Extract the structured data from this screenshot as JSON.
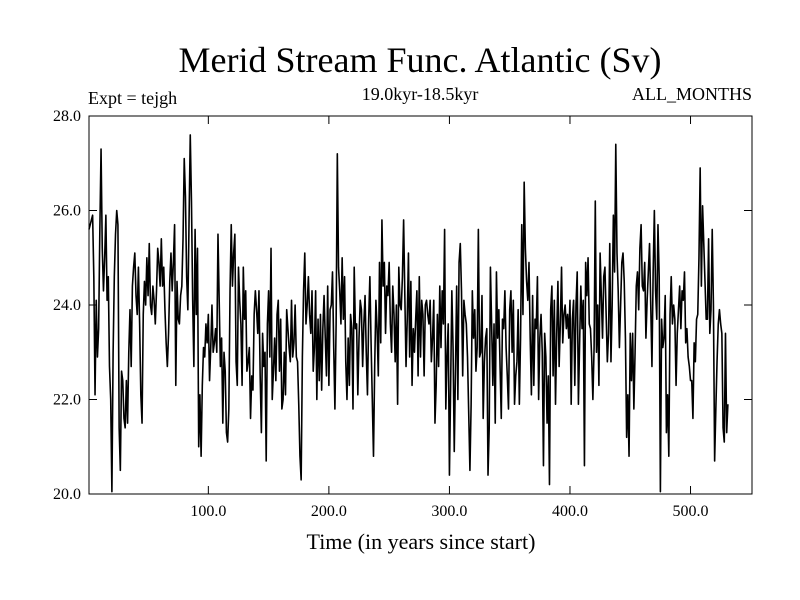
{
  "header": {
    "title": "Merid Stream Func. Atlantic (Sv)",
    "subtitle": "19.0kyr-18.5kyr",
    "left_label": "Expt = tejgh",
    "right_label": "ALL_MONTHS"
  },
  "colors": {
    "line": "#000000",
    "axes": "#000000",
    "background": "#ffffff"
  },
  "chart_data": {
    "type": "line",
    "title": "Merid Stream Func. Atlantic (Sv)",
    "subtitle": "19.0kyr-18.5kyr",
    "xlabel": "Time (in years since start)",
    "ylabel": "",
    "xlim": [
      1,
      551
    ],
    "ylim": [
      20,
      28
    ],
    "grid": false,
    "legend": "none",
    "xticks": [
      100,
      200,
      300,
      400,
      500
    ],
    "xtick_labels": [
      "100.0",
      "200.0",
      "300.0",
      "400.0",
      "500.0"
    ],
    "yticks": [
      20,
      22,
      24,
      26,
      28
    ],
    "ytick_labels": [
      "20.0",
      "22.0",
      "24.0",
      "26.0",
      "28.0"
    ],
    "series": [
      {
        "x_start": 1,
        "x_step": 1,
        "values": [
          25.6,
          25.7,
          25.8,
          25.9,
          24.6,
          22.1,
          24.1,
          22.9,
          23.5,
          25.6,
          27.3,
          25.2,
          24.3,
          25.0,
          25.9,
          24.1,
          24.6,
          22.7,
          22.0,
          20.05,
          23.0,
          24.6,
          25.5,
          26.0,
          25.7,
          21.4,
          20.5,
          22.6,
          22.4,
          21.6,
          21.4,
          22.4,
          21.5,
          23.0,
          23.9,
          22.7,
          24.4,
          24.8,
          25.1,
          24.2,
          23.8,
          24.8,
          23.6,
          22.1,
          21.5,
          23.8,
          24.5,
          24.0,
          25.0,
          24.2,
          25.3,
          24.0,
          23.8,
          24.4,
          24.1,
          23.6,
          24.3,
          25.2,
          24.9,
          24.4,
          25.4,
          24.4,
          24.8,
          23.9,
          23.2,
          22.7,
          23.4,
          24.5,
          25.1,
          24.3,
          24.9,
          25.7,
          22.3,
          24.5,
          23.7,
          23.6,
          24.2,
          24.4,
          25.4,
          27.1,
          26.3,
          24.6,
          23.9,
          25.8,
          27.6,
          26.2,
          24.1,
          22.7,
          25.6,
          23.8,
          25.2,
          21.0,
          22.1,
          20.8,
          22.3,
          23.1,
          22.9,
          23.6,
          23.2,
          23.8,
          22.4,
          23.1,
          24.0,
          23.0,
          23.2,
          23.5,
          23.0,
          25.5,
          24.1,
          22.7,
          23.3,
          21.5,
          23.0,
          22.6,
          21.3,
          21.1,
          21.8,
          24.3,
          25.7,
          24.4,
          25.1,
          25.5,
          22.8,
          22.3,
          24.8,
          24.1,
          23.6,
          22.3,
          24.8,
          23.7,
          24.3,
          22.6,
          22.8,
          23.1,
          21.6,
          22.5,
          22.2,
          23.8,
          24.3,
          23.9,
          23.4,
          24.3,
          22.5,
          21.3,
          23.4,
          22.7,
          23.0,
          20.7,
          23.6,
          24.3,
          22.9,
          25.2,
          22.0,
          22.6,
          23.3,
          22.4,
          23.8,
          24.1,
          22.6,
          23.7,
          21.8,
          22.0,
          23.0,
          22.1,
          23.9,
          23.5,
          23.1,
          22.8,
          24.1,
          22.9,
          23.2,
          24.0,
          22.9,
          22.8,
          21.9,
          20.8,
          20.3,
          22.9,
          24.3,
          25.1,
          23.6,
          24.0,
          24.6,
          23.8,
          23.4,
          24.3,
          22.6,
          23.1,
          24.3,
          22.0,
          23.7,
          22.4,
          23.8,
          22.2,
          23.5,
          24.2,
          23.3,
          22.5,
          24.4,
          22.3,
          23.9,
          24.0,
          24.7,
          23.1,
          21.8,
          23.6,
          27.2,
          24.8,
          24.3,
          23.6,
          25.0,
          23.7,
          24.6,
          22.8,
          22.0,
          23.3,
          22.3,
          23.8,
          23.5,
          21.8,
          24.8,
          23.5,
          23.6,
          22.1,
          23.3,
          24.1,
          23.9,
          22.7,
          23.6,
          24.2,
          23.0,
          22.1,
          23.7,
          24.6,
          23.2,
          22.0,
          20.8,
          22.7,
          24.1,
          23.5,
          22.5,
          24.9,
          23.2,
          25.8,
          24.4,
          24.9,
          23.4,
          24.4,
          24.2,
          24.9,
          23.6,
          23.0,
          24.4,
          23.8,
          22.8,
          24.0,
          21.9,
          24.8,
          24.0,
          23.9,
          24.6,
          25.8,
          24.2,
          22.7,
          23.7,
          25.1,
          22.9,
          24.5,
          22.3,
          23.5,
          23.0,
          23.7,
          24.3,
          22.5,
          24.6,
          22.9,
          24.1,
          23.8,
          22.5,
          24.0,
          24.1,
          23.8,
          23.6,
          24.1,
          22.8,
          23.3,
          24.1,
          21.5,
          22.3,
          23.8,
          22.7,
          24.4,
          23.1,
          24.3,
          23.6,
          25.6,
          21.8,
          22.9,
          23.6,
          20.4,
          22.3,
          24.3,
          23.1,
          20.9,
          22.6,
          24.4,
          22.0,
          24.9,
          25.3,
          24.3,
          22.5,
          24.1,
          23.8,
          23.6,
          22.9,
          21.7,
          20.5,
          21.9,
          24.3,
          23.3,
          23.9,
          22.6,
          23.1,
          25.6,
          22.9,
          23.0,
          24.2,
          21.6,
          22.8,
          23.3,
          23.5,
          20.4,
          21.4,
          24.8,
          23.6,
          22.3,
          23.6,
          21.5,
          24.7,
          23.3,
          23.9,
          22.7,
          21.6,
          23.7,
          23.5,
          24.3,
          23.1,
          22.5,
          21.8,
          23.9,
          24.3,
          23.0,
          24.1,
          21.9,
          22.5,
          22.8,
          23.9,
          21.9,
          23.3,
          25.7,
          23.8,
          26.6,
          25.2,
          24.5,
          24.1,
          24.9,
          23.3,
          22.1,
          24.2,
          22.3,
          23.7,
          23.5,
          24.6,
          22.0,
          23.3,
          23.8,
          23.0,
          20.6,
          23.4,
          22.9,
          21.5,
          22.5,
          20.2,
          23.9,
          24.4,
          22.5,
          24.1,
          21.9,
          23.4,
          24.5,
          22.7,
          23.6,
          24.8,
          23.2,
          23.8,
          24.0,
          23.5,
          23.8,
          23.3,
          24.1,
          21.9,
          23.7,
          24.1,
          22.3,
          24.0,
          24.7,
          21.9,
          23.2,
          24.4,
          23.5,
          24.1,
          20.6,
          24.9,
          24.2,
          25.0,
          23.6,
          23.5,
          22.9,
          22.0,
          23.1,
          26.2,
          23.0,
          24.0,
          22.3,
          25.1,
          24.2,
          23.3,
          24.6,
          24.8,
          23.8,
          22.8,
          23.4,
          25.3,
          22.8,
          24.0,
          25.9,
          24.7,
          27.4,
          25.1,
          24.3,
          23.1,
          24.0,
          24.9,
          25.1,
          24.5,
          23.3,
          21.2,
          22.1,
          20.8,
          23.4,
          22.4,
          23.4,
          21.8,
          23.0,
          24.4,
          24.7,
          23.9,
          25.2,
          25.7,
          24.4,
          24.3,
          24.9,
          23.3,
          24.1,
          24.7,
          25.3,
          24.0,
          22.7,
          24.7,
          26.0,
          24.3,
          23.7,
          25.7,
          24.6,
          20.05,
          23.7,
          23.1,
          23.3,
          24.2,
          21.3,
          22.1,
          20.8,
          23.8,
          24.6,
          23.6,
          24.0,
          23.7,
          22.3,
          23.4,
          23.9,
          24.4,
          23.5,
          24.3,
          24.1,
          24.7,
          23.2,
          23.5,
          22.9,
          22.7,
          22.4,
          22.4,
          21.6,
          23.2,
          22.8,
          23.7,
          23.8,
          25.0,
          26.9,
          24.4,
          26.1,
          25.3,
          24.5,
          23.7,
          23.7,
          25.4,
          23.4,
          23.9,
          25.6,
          24.0,
          20.7,
          21.8,
          22.8,
          23.6,
          23.9,
          23.6,
          23.4,
          21.4,
          21.1,
          23.4,
          21.3,
          21.9
        ]
      }
    ]
  }
}
